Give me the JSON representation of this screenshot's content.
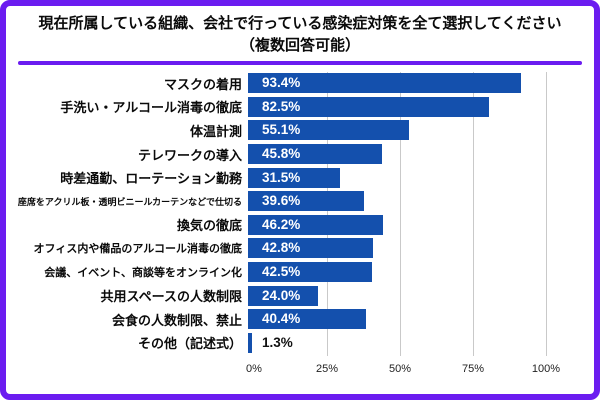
{
  "frame": {
    "border_color": "#6b1cf0",
    "background": "#ffffff"
  },
  "title": {
    "line1": "現在所属している組織、会社で行っている感染症対策を全て選択してください",
    "line2": "（複数回答可能）"
  },
  "chart_data": {
    "type": "bar",
    "orientation": "horizontal",
    "title": "現在所属している組織、会社で行っている感染症対策を全て選択してください（複数回答可能）",
    "categories": [
      "マスクの着用",
      "手洗い・アルコール消毒の徹底",
      "体温計測",
      "テレワークの導入",
      "時差通勤、ローテーション勤務",
      "座席をアクリル板・透明ビニールカーテンなどで仕切る",
      "換気の徹底",
      "オフィス内や備品のアルコール消毒の徹底",
      "会議、イベント、商談等をオンライン化",
      "共用スペースの人数制限",
      "会食の人数制限、禁止",
      "その他（記述式）"
    ],
    "values": [
      93.4,
      82.5,
      55.1,
      45.8,
      31.5,
      39.6,
      46.2,
      42.8,
      42.5,
      24.0,
      40.4,
      1.3
    ],
    "value_labels": [
      "93.4%",
      "82.5%",
      "55.1%",
      "45.8%",
      "31.5%",
      "39.6%",
      "46.2%",
      "42.8%",
      "42.5%",
      "24.0%",
      "40.4%",
      "1.3%"
    ],
    "label_sizes": [
      "large",
      "large",
      "large",
      "large",
      "large",
      "small",
      "large",
      "medium",
      "medium",
      "large",
      "large",
      "large"
    ],
    "x_ticks": [
      "0%",
      "25%",
      "50%",
      "75%",
      "100%"
    ],
    "xlim": [
      0,
      100
    ],
    "grid": true,
    "gridline_color": "#c9c9c9",
    "bar_color": "#1450ad",
    "value_label_color_inside": "#ffffff",
    "value_label_color_outside": "#111111",
    "outside_label_threshold": 10
  }
}
